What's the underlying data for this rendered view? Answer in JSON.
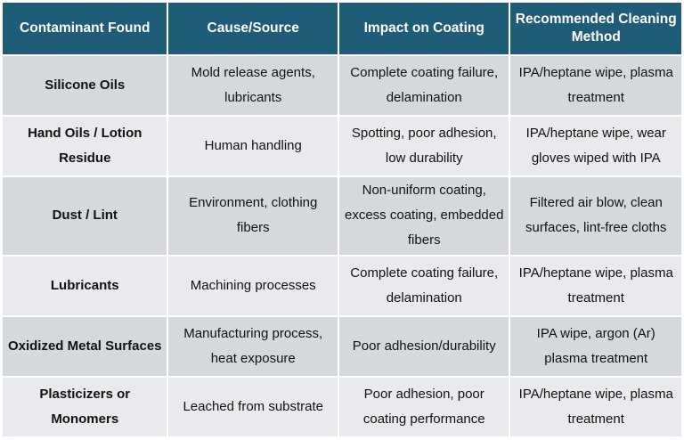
{
  "table": {
    "headers": [
      "Contaminant Found",
      "Cause/Source",
      "Impact on Coating",
      "Recommended Cleaning Method"
    ],
    "rows": [
      [
        "Silicone Oils",
        "Mold release agents, lubricants",
        "Complete coating failure, delamination",
        "IPA/heptane wipe, plasma treatment"
      ],
      [
        "Hand Oils / Lotion Residue",
        "Human handling",
        "Spotting, poor adhesion, low durability",
        "IPA/heptane wipe, wear gloves wiped with IPA"
      ],
      [
        "Dust / Lint",
        "Environment, clothing fibers",
        "Non-uniform coating, excess coating, embedded fibers",
        "Filtered air blow, clean surfaces, lint-free cloths"
      ],
      [
        "Lubricants",
        "Machining processes",
        "Complete coating failure, delamination",
        "IPA/heptane wipe, plasma treatment"
      ],
      [
        "Oxidized Metal Surfaces",
        "Manufacturing process, heat exposure",
        "Poor adhesion/durability",
        "IPA wipe, argon (Ar) plasma treatment"
      ],
      [
        "Plasticizers or Monomers",
        "Leached from substrate",
        "Poor adhesion, poor coating performance",
        "IPA/heptane wipe, plasma treatment"
      ]
    ]
  },
  "colors": {
    "header_bg": "#1f5c77",
    "header_text": "#ffffff",
    "row_band_dark": "#d5d9de",
    "row_band_light": "#e8eaed"
  }
}
